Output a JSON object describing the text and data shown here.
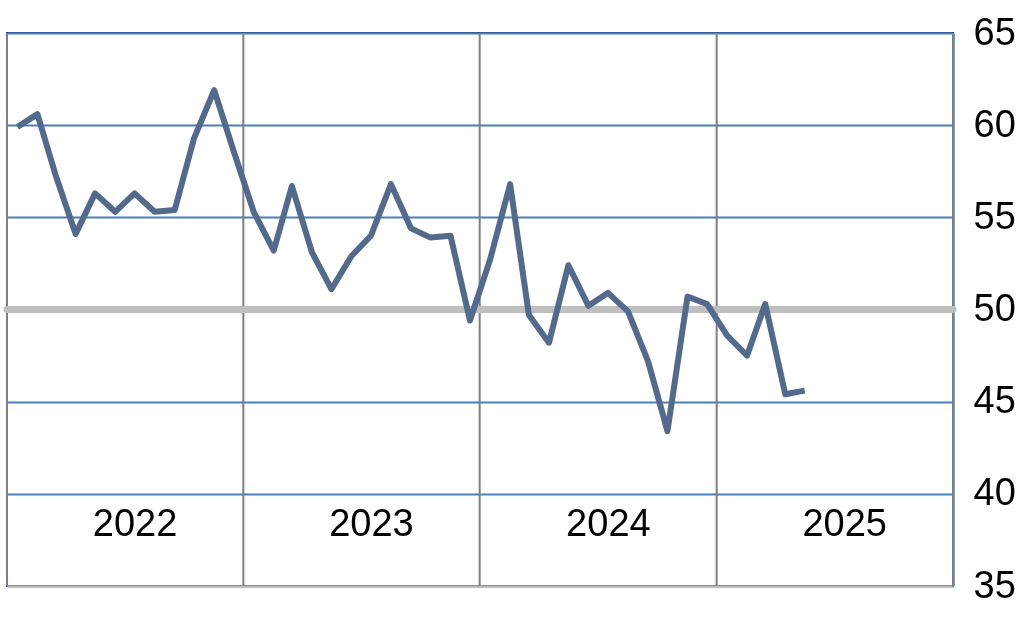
{
  "chart_data": {
    "type": "line",
    "x": [
      "2022-01",
      "2022-02",
      "2022-03",
      "2022-04",
      "2022-05",
      "2022-06",
      "2022-07",
      "2022-08",
      "2022-09",
      "2022-10",
      "2022-11",
      "2022-12",
      "2023-01",
      "2023-02",
      "2023-03",
      "2023-04",
      "2023-05",
      "2023-06",
      "2023-07",
      "2023-08",
      "2023-09",
      "2023-10",
      "2023-11",
      "2023-12",
      "2024-01",
      "2024-02",
      "2024-03",
      "2024-04",
      "2024-05",
      "2024-06",
      "2024-07",
      "2024-08",
      "2024-09",
      "2024-10",
      "2024-11",
      "2024-12",
      "2025-01",
      "2025-02",
      "2025-03",
      "2025-04",
      "2025-05"
    ],
    "series": [
      {
        "color": "#536a8c",
        "values": [
          59.9,
          60.6,
          57.3,
          54.1,
          56.3,
          55.3,
          56.3,
          55.3,
          55.4,
          59.3,
          61.9,
          58.6,
          55.3,
          53.2,
          56.7,
          53.1,
          51.1,
          52.9,
          54.0,
          56.8,
          54.4,
          53.9,
          54.0,
          49.4,
          52.7,
          56.8,
          49.7,
          48.2,
          52.4,
          50.2,
          50.9,
          49.9,
          47.2,
          43.4,
          50.7,
          50.3,
          48.6,
          47.5,
          50.3,
          45.4,
          45.6
        ]
      }
    ],
    "xlim": [
      "2021-12-16",
      "2025-12-16"
    ],
    "xticks": [
      {
        "value": "2021-12-16",
        "label": null
      },
      {
        "value": "2022-07-01",
        "label": "2022"
      },
      {
        "value": "2022-12-16",
        "label": null
      },
      {
        "value": "2023-07-01",
        "label": "2023"
      },
      {
        "value": "2023-12-16",
        "label": null
      },
      {
        "value": "2024-07-01",
        "label": "2024"
      },
      {
        "value": "2024-12-16",
        "label": null
      },
      {
        "value": "2025-07-01",
        "label": "2025"
      },
      {
        "value": "2025-12-16",
        "label": null
      }
    ],
    "ylim": [
      35,
      65
    ],
    "yticks": [
      35,
      40,
      45,
      50,
      55,
      60,
      65
    ],
    "ref_lines": [
      {
        "axis": "y",
        "value": 50,
        "color": "#bfbfbf"
      }
    ],
    "grid": true,
    "marker": "none",
    "line_style": "solid"
  }
}
